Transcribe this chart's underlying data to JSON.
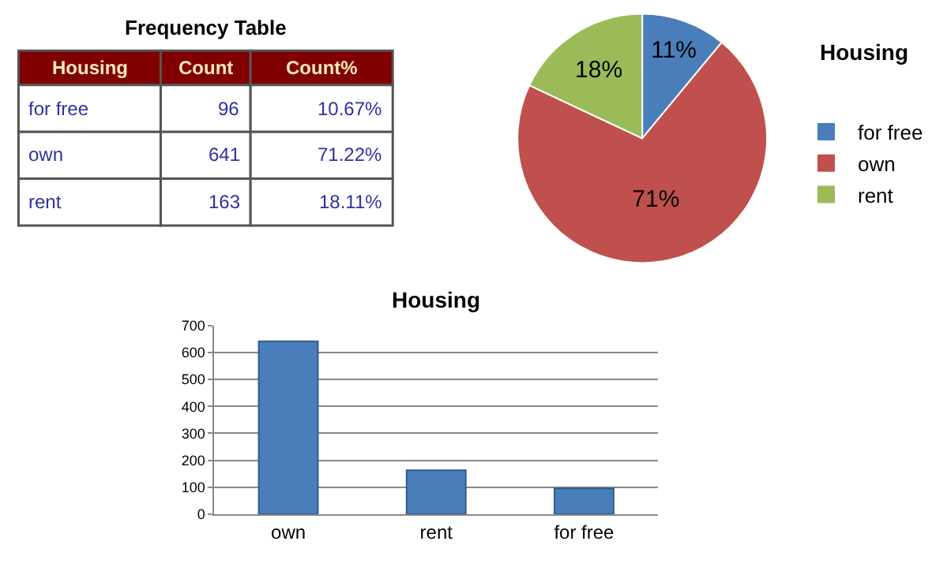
{
  "chart_data": [
    {
      "type": "other",
      "title": "Frequency Table",
      "annotations": [
        "Housing",
        "Count",
        "Count%",
        "for free",
        "96",
        "10.67%",
        "own",
        "641",
        "71.22%",
        "rent",
        "163",
        "18.11%"
      ]
    },
    {
      "type": "pie",
      "title": "Housing",
      "categories": [
        "for free",
        "own",
        "rent"
      ],
      "values": [
        11,
        71,
        18
      ],
      "colors": [
        "#4a7ebb",
        "#c0504d",
        "#9bbb59"
      ],
      "value_labels": [
        "11%",
        "71%",
        "18%"
      ],
      "legend": "right"
    },
    {
      "type": "bar",
      "title": "Housing",
      "categories": [
        "own",
        "rent",
        "for free"
      ],
      "values": [
        641,
        163,
        96
      ],
      "color": "#4a7ebb",
      "ylim": [
        0,
        700
      ],
      "yticks": [
        0,
        100,
        200,
        300,
        400,
        500,
        600,
        700
      ],
      "grid": "y"
    }
  ]
}
